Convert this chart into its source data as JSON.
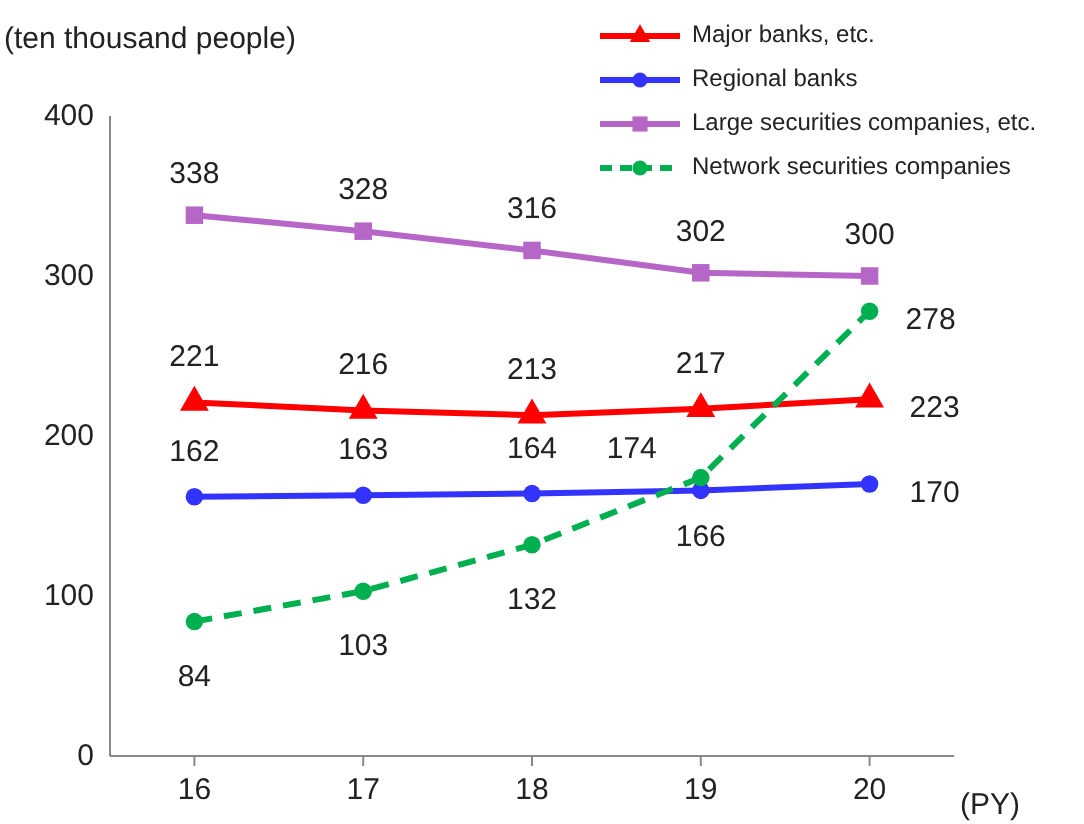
{
  "chart_data": {
    "type": "line",
    "ylabel": "(ten thousand people)",
    "xlabel": "(PY)",
    "categories": [
      "16",
      "17",
      "18",
      "19",
      "20"
    ],
    "series": [
      {
        "name": "Major banks, etc.",
        "color": "#ff0000",
        "marker": "triangle",
        "line_style": "solid",
        "values": [
          221,
          216,
          213,
          217,
          223
        ]
      },
      {
        "name": "Regional banks",
        "color": "#3333ff",
        "marker": "circle",
        "line_style": "solid",
        "values": [
          162,
          163,
          164,
          166,
          170
        ]
      },
      {
        "name": "Large securities companies, etc.",
        "color": "#b666c6",
        "marker": "square",
        "line_style": "solid",
        "values": [
          338,
          328,
          316,
          302,
          300
        ]
      },
      {
        "name": "Network securities companies",
        "color": "#00b050",
        "marker": "circle",
        "line_style": "dashed",
        "values": [
          84,
          103,
          132,
          174,
          278
        ]
      }
    ],
    "ylim": [
      0,
      400
    ],
    "yticks": [
      0,
      100,
      200,
      300,
      400
    ],
    "grid": false,
    "legend": "top right",
    "data_labels": true
  }
}
